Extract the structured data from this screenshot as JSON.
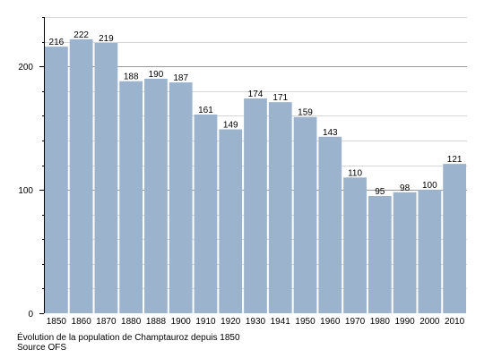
{
  "chart_data": {
    "type": "bar",
    "categories": [
      "1850",
      "1860",
      "1870",
      "1880",
      "1888",
      "1900",
      "1910",
      "1920",
      "1930",
      "1941",
      "1950",
      "1960",
      "1970",
      "1980",
      "1990",
      "2000",
      "2010"
    ],
    "values": [
      216,
      222,
      219,
      188,
      190,
      187,
      161,
      149,
      174,
      171,
      159,
      143,
      110,
      95,
      98,
      100,
      121
    ],
    "title": "",
    "xlabel": "",
    "ylabel": "",
    "ylim": [
      0,
      240
    ],
    "yticks": [
      0,
      100,
      200
    ],
    "grid": true,
    "bar_color": "#9cb3cd",
    "grid_color": "#d6d6d6",
    "gridline_major_color": "#9a9a9a"
  },
  "caption": {
    "title": "Évolution de la population de Champtauroz depuis 1850",
    "source": "Source OFS"
  }
}
